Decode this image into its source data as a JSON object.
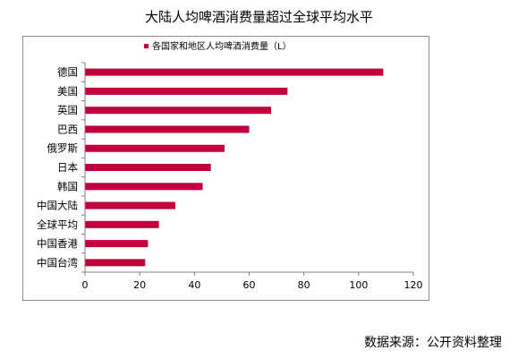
{
  "source_note": "数据来源：公开资料整理",
  "colors": {
    "bar": "#C0003C",
    "axis": "#7f7f7f",
    "frame": "#8c8c8c"
  },
  "chart_data": {
    "type": "bar",
    "orientation": "horizontal",
    "title": "大陆人均啤酒消费量超过全球平均水平",
    "categories": [
      "德国",
      "美国",
      "英国",
      "巴西",
      "俄罗斯",
      "日本",
      "韩国",
      "中国大陆",
      "全球平均",
      "中国香港",
      "中国台湾"
    ],
    "series": [
      {
        "name": "各国家和地区人均啤酒消费量（L）",
        "values": [
          109,
          74,
          68,
          60,
          51,
          46,
          43,
          33,
          27,
          23,
          22
        ]
      }
    ],
    "xticks": [
      "0",
      "20",
      "40",
      "60",
      "80",
      "100",
      "120"
    ],
    "xlim": [
      0,
      120
    ],
    "grid": false,
    "legend_position": "top-left"
  }
}
